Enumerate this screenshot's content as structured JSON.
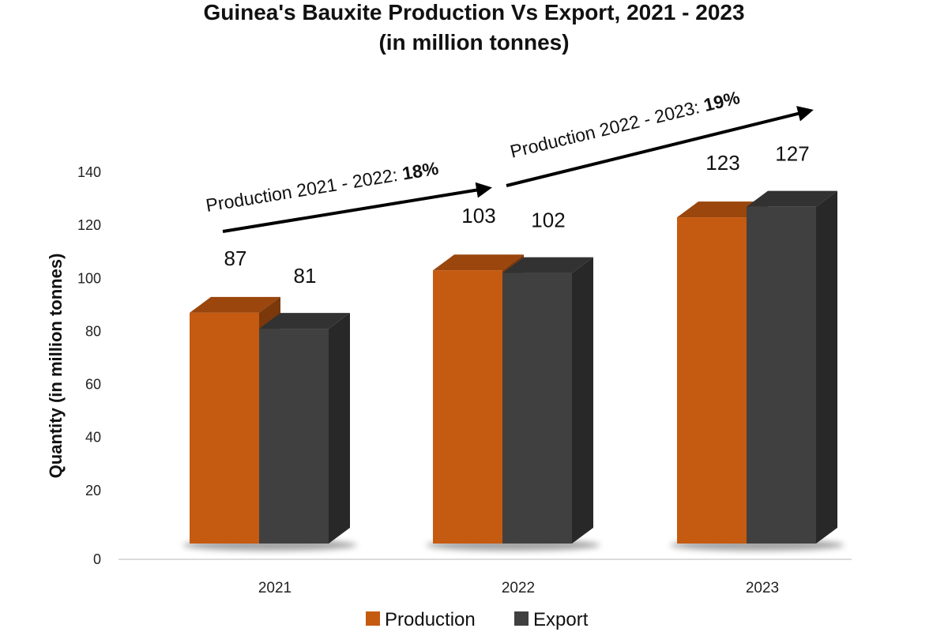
{
  "chart_data": {
    "type": "bar",
    "title": "Guinea's Bauxite Production Vs Export, 2021 - 2023",
    "subtitle": "(in million tonnes)",
    "xlabel": "",
    "ylabel": "Quantity (in million tonnes)",
    "categories": [
      "2021",
      "2022",
      "2023"
    ],
    "ylim": [
      0,
      140
    ],
    "yticks": [
      0,
      20,
      40,
      60,
      80,
      100,
      120,
      140
    ],
    "grid": false,
    "legend_position": "bottom-center",
    "three_d": true,
    "series": [
      {
        "name": "Production",
        "values": [
          87,
          103,
          123
        ],
        "color": "#c55a11"
      },
      {
        "name": "Export",
        "values": [
          81,
          102,
          127
        ],
        "color": "#404040"
      }
    ],
    "annotations": [
      {
        "text": "Production 2021 - 2022: ",
        "bold": "18%",
        "from": "2021",
        "to": "2022"
      },
      {
        "text": "Production 2022 - 2023: ",
        "bold": "19%",
        "from": "2022",
        "to": "2023"
      }
    ]
  }
}
